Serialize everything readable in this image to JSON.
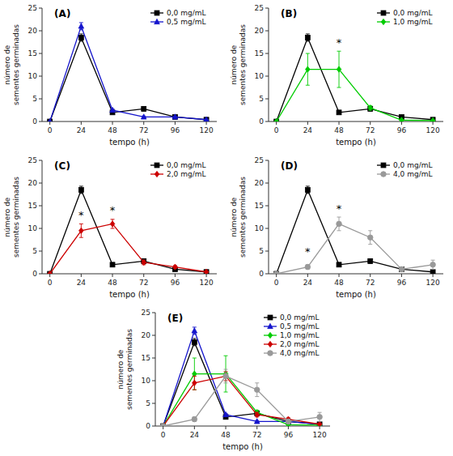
{
  "chart_data": [
    {
      "type": "line",
      "title": "(A)",
      "xlabel": "tempo (h)",
      "ylabel": "número de\nsementes germinadas",
      "x": [
        0,
        24,
        48,
        72,
        96,
        120
      ],
      "series": [
        {
          "name": "0,0 mg/mL",
          "color": "#000000",
          "marker": "square",
          "values": [
            0,
            18.5,
            2.0,
            2.8,
            1.0,
            0.4
          ],
          "errors": [
            0,
            0.8,
            0.3,
            0.5,
            0.3,
            0.1
          ]
        },
        {
          "name": "0,5 mg/mL",
          "color": "#1414CC",
          "marker": "triangle",
          "values": [
            0,
            21.0,
            2.5,
            1.0,
            1.0,
            0.4
          ],
          "errors": [
            0,
            0.8,
            0.3,
            0.2,
            0.2,
            0.1
          ]
        }
      ],
      "xlim": [
        -6,
        128
      ],
      "ylim": [
        0,
        25
      ],
      "xticks": [
        0,
        24,
        48,
        72,
        96,
        120
      ],
      "yticks": [
        0,
        5,
        10,
        15,
        20,
        25
      ],
      "grid": false,
      "legend": "upper right"
    },
    {
      "type": "line",
      "title": "(B)",
      "xlabel": "tempo (h)",
      "ylabel": "número de\nsementes germinadas",
      "x": [
        0,
        24,
        48,
        72,
        96,
        120
      ],
      "series": [
        {
          "name": "0,0 mg/mL",
          "color": "#000000",
          "marker": "square",
          "values": [
            0,
            18.5,
            2.0,
            2.8,
            1.0,
            0.4
          ],
          "errors": [
            0,
            0.8,
            0.3,
            0.5,
            0.3,
            0.1
          ]
        },
        {
          "name": "1,0 mg/mL",
          "color": "#00CC00",
          "marker": "diamond",
          "values": [
            0,
            11.5,
            11.5,
            3.0,
            0.3,
            0.2
          ],
          "errors": [
            0,
            3.5,
            4.0,
            0.5,
            0.1,
            0.1
          ]
        }
      ],
      "annotations": [
        {
          "text": "*",
          "x": 48,
          "y": 17.0
        }
      ],
      "xlim": [
        -6,
        128
      ],
      "ylim": [
        0,
        25
      ],
      "xticks": [
        0,
        24,
        48,
        72,
        96,
        120
      ],
      "yticks": [
        0,
        5,
        10,
        15,
        20,
        25
      ],
      "grid": false,
      "legend": "upper right"
    },
    {
      "type": "line",
      "title": "(C)",
      "xlabel": "tempo (h)",
      "ylabel": "número de\nsementes germinadas",
      "x": [
        0,
        24,
        48,
        72,
        96,
        120
      ],
      "series": [
        {
          "name": "0,0 mg/mL",
          "color": "#000000",
          "marker": "square",
          "values": [
            0,
            18.5,
            2.0,
            2.8,
            1.0,
            0.4
          ],
          "errors": [
            0,
            0.8,
            0.3,
            0.5,
            0.3,
            0.1
          ]
        },
        {
          "name": "2,0 mg/mL",
          "color": "#CC0000",
          "marker": "diamond",
          "values": [
            0,
            9.5,
            11.0,
            2.5,
            1.5,
            0.4
          ],
          "errors": [
            0,
            1.5,
            1.0,
            0.5,
            0.3,
            0.1
          ]
        }
      ],
      "annotations": [
        {
          "text": "*",
          "x": 24,
          "y": 12.5
        },
        {
          "text": "*",
          "x": 48,
          "y": 13.5
        }
      ],
      "xlim": [
        -6,
        128
      ],
      "ylim": [
        0,
        25
      ],
      "xticks": [
        0,
        24,
        48,
        72,
        96,
        120
      ],
      "yticks": [
        0,
        5,
        10,
        15,
        20,
        25
      ],
      "grid": false,
      "legend": "upper right"
    },
    {
      "type": "line",
      "title": "(D)",
      "xlabel": "tempo (h)",
      "ylabel": "número de\nsementes germinadas",
      "x": [
        0,
        24,
        48,
        72,
        96,
        120
      ],
      "series": [
        {
          "name": "0,0 mg/mL",
          "color": "#000000",
          "marker": "square",
          "values": [
            0,
            18.5,
            2.0,
            2.8,
            1.0,
            0.4
          ],
          "errors": [
            0,
            0.8,
            0.3,
            0.5,
            0.3,
            0.1
          ]
        },
        {
          "name": "4,0 mg/mL",
          "color": "#999999",
          "marker": "circle",
          "values": [
            0,
            1.5,
            11.0,
            8.0,
            1.0,
            2.0
          ],
          "errors": [
            0,
            0.5,
            1.5,
            1.5,
            0.5,
            1.0
          ]
        }
      ],
      "annotations": [
        {
          "text": "*",
          "x": 24,
          "y": 4.5
        },
        {
          "text": "*",
          "x": 48,
          "y": 14.0
        }
      ],
      "xlim": [
        -6,
        128
      ],
      "ylim": [
        0,
        25
      ],
      "xticks": [
        0,
        24,
        48,
        72,
        96,
        120
      ],
      "yticks": [
        0,
        5,
        10,
        15,
        20,
        25
      ],
      "grid": false,
      "legend": "upper right"
    },
    {
      "type": "line",
      "title": "(E)",
      "xlabel": "tempo (h)",
      "ylabel": "número de\nsementes germinadas",
      "x": [
        0,
        24,
        48,
        72,
        96,
        120
      ],
      "series": [
        {
          "name": "0,0 mg/mL",
          "color": "#000000",
          "marker": "square",
          "values": [
            0,
            18.5,
            2.0,
            2.8,
            1.0,
            0.4
          ],
          "errors": [
            0,
            0.8,
            0.3,
            0.5,
            0.3,
            0.1
          ]
        },
        {
          "name": "0,5 mg/mL",
          "color": "#1414CC",
          "marker": "triangle",
          "values": [
            0,
            21.0,
            2.5,
            1.0,
            1.0,
            0.4
          ],
          "errors": [
            0,
            0.8,
            0.3,
            0.2,
            0.2,
            0.1
          ]
        },
        {
          "name": "1,0 mg/mL",
          "color": "#00CC00",
          "marker": "diamond",
          "values": [
            0,
            11.5,
            11.5,
            3.0,
            0.3,
            0.2
          ],
          "errors": [
            0,
            3.5,
            4.0,
            0.5,
            0.1,
            0.1
          ]
        },
        {
          "name": "2,0 mg/mL",
          "color": "#CC0000",
          "marker": "diamond",
          "values": [
            0,
            9.5,
            11.0,
            2.5,
            1.5,
            0.4
          ],
          "errors": [
            0,
            1.5,
            1.0,
            0.5,
            0.3,
            0.1
          ]
        },
        {
          "name": "4,0 mg/mL",
          "color": "#999999",
          "marker": "circle",
          "values": [
            0,
            1.5,
            11.0,
            8.0,
            1.0,
            2.0
          ],
          "errors": [
            0,
            0.5,
            1.5,
            1.5,
            0.5,
            1.0
          ]
        }
      ],
      "xlim": [
        -6,
        128
      ],
      "ylim": [
        0,
        25
      ],
      "xticks": [
        0,
        24,
        48,
        72,
        96,
        120
      ],
      "yticks": [
        0,
        5,
        10,
        15,
        20,
        25
      ],
      "grid": false,
      "legend": "upper right"
    }
  ]
}
